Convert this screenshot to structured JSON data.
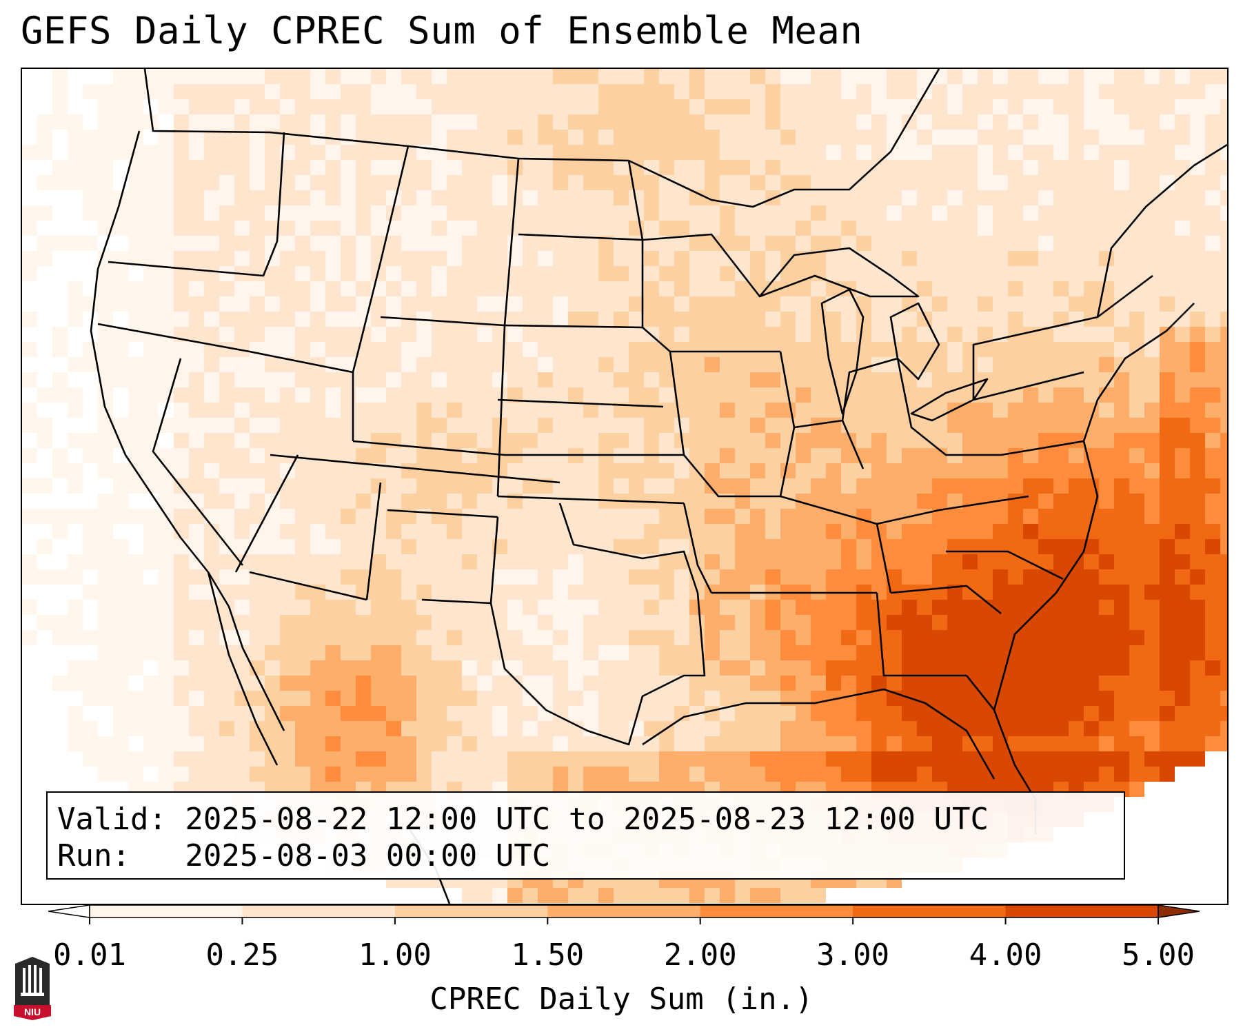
{
  "title": "GEFS Daily CPREC Sum of Ensemble Mean",
  "info": {
    "valid_line": "Valid: 2025-08-22 12:00 UTC to 2025-08-23 12:00 UTC",
    "run_line": "Run:   2025-08-03 00:00 UTC"
  },
  "colorbar": {
    "label": "CPREC Daily Sum (in.)",
    "ticks": [
      "0.01",
      "0.25",
      "1.00",
      "1.50",
      "2.00",
      "3.00",
      "4.00",
      "5.00"
    ],
    "colors": [
      "#fff5eb",
      "#fee6ce",
      "#fdd0a2",
      "#fdae6b",
      "#fd8d3c",
      "#f16913",
      "#d94801",
      "#8c2d04"
    ],
    "under_color": "#ffffff",
    "over_color": "#8c2d04"
  },
  "logo": {
    "text": "NIU",
    "color": "#c8102e"
  },
  "map_fields": {
    "description_levels": "0=white,1=0.01-0.25,2=0.25-1.00,3=1.00-1.50,4=1.50-2.00,5=2.00-3.00,6=3.00-4.00,7=4.00-5.00"
  }
}
